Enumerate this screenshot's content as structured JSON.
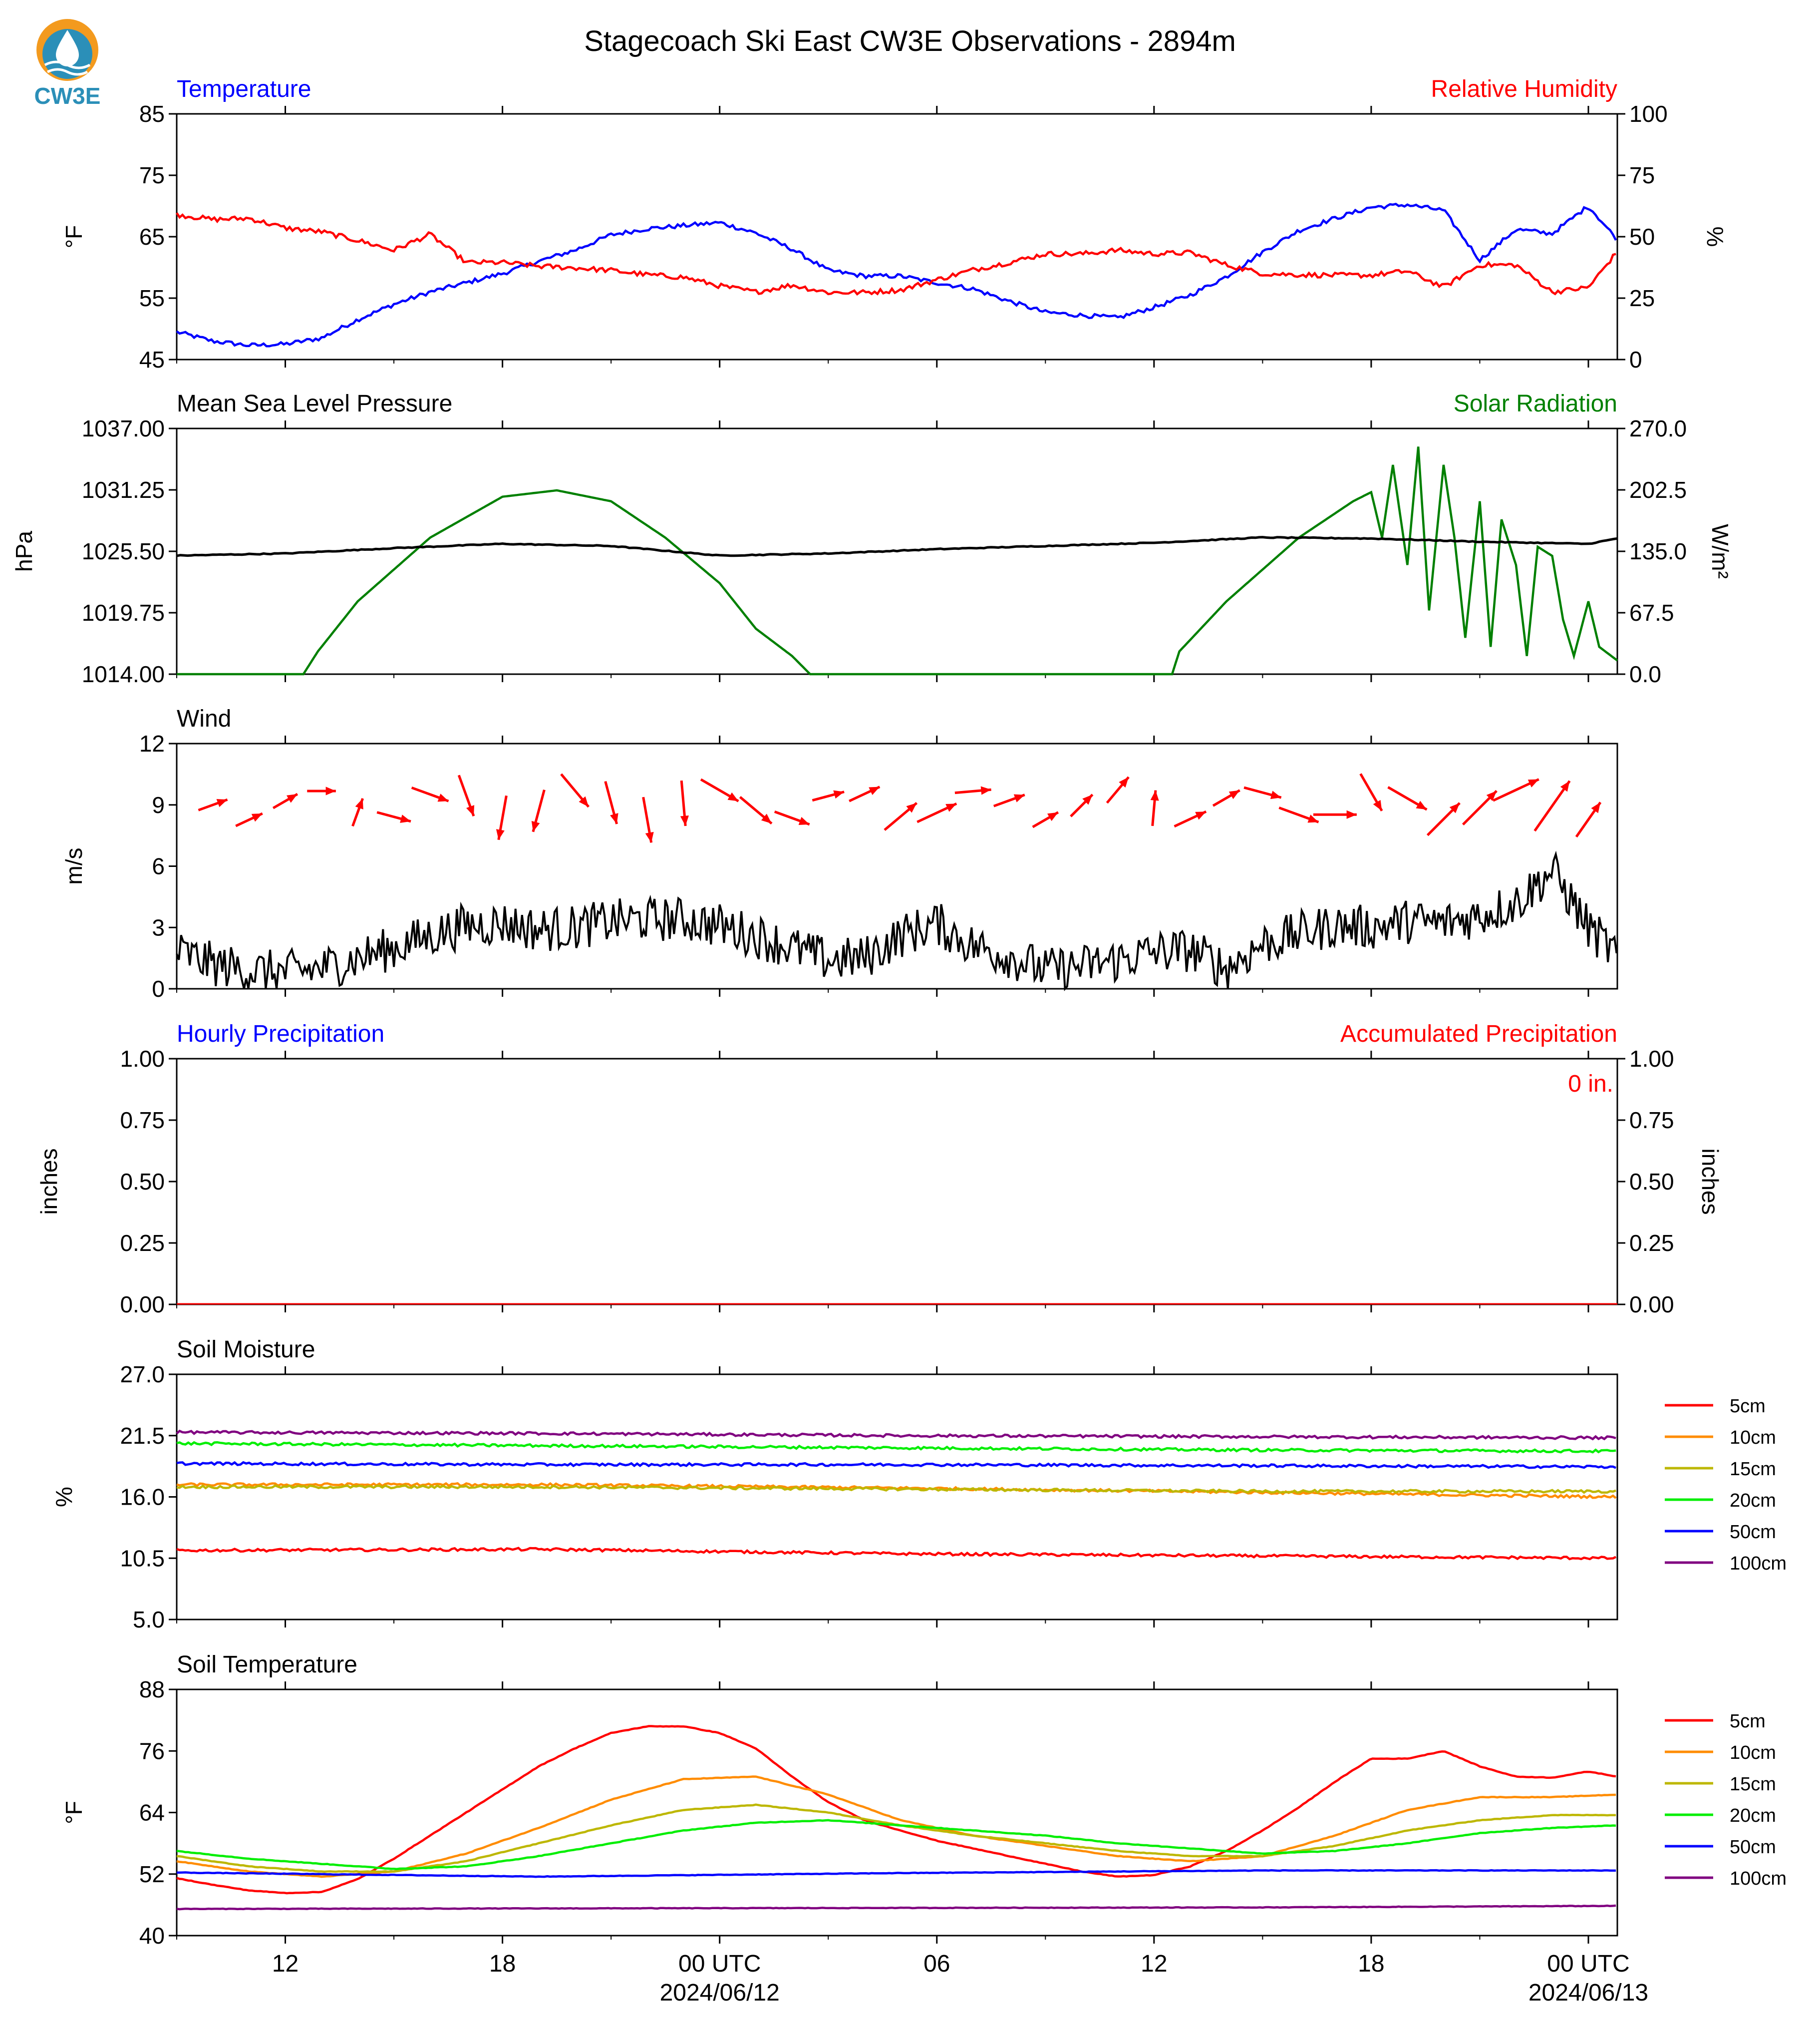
{
  "title": "Stagecoach Ski East CW3E Observations - 2894m",
  "logo": {
    "text": "CW3E",
    "color": "#2b8fb8",
    "accent": "#f39a1e"
  },
  "colors": {
    "temperature": "#0000ff",
    "humidity": "#ff0000",
    "pressure": "#000000",
    "solar": "#008000",
    "wind": "#000000",
    "wind_arrow": "#ff0000",
    "accum": "#ff0000",
    "hourly": "#0000ff",
    "soil_5cm": "#ff0000",
    "soil_10cm": "#ff8c00",
    "soil_15cm": "#bdb700",
    "soil_20cm": "#00ee00",
    "soil_50cm": "#0000ff",
    "soil_100cm": "#800080"
  },
  "x_axis": {
    "range_hours": [
      -15,
      24.8
    ],
    "ticks_hours": [
      -12,
      -6,
      0,
      6,
      12,
      18,
      24
    ],
    "tick_labels": [
      "12",
      "18",
      "00 UTC",
      "06",
      "12",
      "18",
      "00 UTC"
    ],
    "date_labels": [
      "2024/06/12",
      "",
      "",
      "2024/06/13"
    ],
    "date_label_positions": [
      0,
      24
    ],
    "note": "hours relative to 2024/06/12 00 UTC"
  },
  "chart_data": [
    {
      "type": "line",
      "panel": "temperature_humidity",
      "left_title": "Temperature",
      "right_title": "Relative Humidity",
      "ylabel_left": "°F",
      "ylabel_right": "%",
      "ylim_left": [
        45,
        85
      ],
      "ylim_right": [
        0,
        100
      ],
      "yticks_left": [
        "45",
        "55",
        "65",
        "75",
        "85"
      ],
      "yticks_right": [
        "0",
        "25",
        "50",
        "75",
        "100"
      ],
      "series": [
        {
          "name": "Temperature",
          "axis": "left",
          "x": [
            -15,
            -14,
            -13,
            -12,
            -11,
            -10,
            -9,
            -8,
            -7,
            -6,
            -5,
            -4,
            -3,
            -2,
            -1,
            0,
            1,
            2,
            3,
            4,
            5,
            6,
            7,
            8,
            9,
            10,
            11,
            12,
            13,
            14,
            15,
            16,
            17,
            18,
            19,
            20,
            21,
            22,
            23,
            24,
            24.8
          ],
          "y": [
            49.5,
            48,
            47.3,
            47.5,
            48.5,
            51.5,
            54,
            56,
            57.5,
            59,
            61,
            62.8,
            65.3,
            66.3,
            66.8,
            67.3,
            65.6,
            63,
            59.5,
            58.6,
            58.6,
            57.5,
            56.5,
            54.5,
            52.7,
            52.2,
            51.8,
            53.5,
            55.5,
            58.5,
            62.5,
            66,
            68,
            69.8,
            70.2,
            69.3,
            61.2,
            66.2,
            65.5,
            70,
            64.5
          ]
        },
        {
          "name": "Relative Humidity",
          "axis": "right",
          "x": [
            -15,
            -14,
            -13,
            -12,
            -11,
            -10,
            -9,
            -8,
            -7,
            -6,
            -5,
            -4,
            -3,
            -2,
            -1,
            0,
            1,
            2,
            3,
            4,
            5,
            6,
            7,
            8,
            9,
            10,
            11,
            12,
            13,
            14,
            15,
            16,
            17,
            18,
            19,
            20,
            21,
            22,
            23,
            24,
            24.8
          ],
          "y": [
            59,
            57,
            57.5,
            53.5,
            52,
            48.5,
            44.5,
            51,
            39.5,
            39.5,
            38,
            37.3,
            36.3,
            34.5,
            33.5,
            30,
            27.5,
            30.3,
            27.3,
            27.3,
            28.3,
            32.5,
            36.5,
            39.5,
            43,
            43,
            44.5,
            43,
            43.5,
            38.5,
            35,
            34.5,
            34.3,
            34.3,
            36,
            29.5,
            38.5,
            38.5,
            27.5,
            29.3,
            44
          ]
        }
      ]
    },
    {
      "type": "line",
      "panel": "pressure_solar",
      "left_title": "Mean Sea Level Pressure",
      "right_title": "Solar Radiation",
      "ylabel_left": "hPa",
      "ylabel_right": "W/m²",
      "ylim_left": [
        1014.0,
        1037.0
      ],
      "ylim_right": [
        0,
        270
      ],
      "yticks_left": [
        "1014.00",
        "1019.75",
        "1025.50",
        "1031.25",
        "1037.00"
      ],
      "yticks_right": [
        "0.0",
        "67.5",
        "135.0",
        "202.5",
        "270.0"
      ],
      "series": [
        {
          "name": "Mean Sea Level Pressure",
          "axis": "left",
          "x": [
            -15,
            -12,
            -9,
            -6,
            -3,
            0,
            3,
            6,
            9,
            12,
            15,
            18,
            21,
            24,
            24.8
          ],
          "y": [
            1025.1,
            1025.3,
            1025.8,
            1026.2,
            1026.0,
            1025.1,
            1025.3,
            1025.7,
            1026.0,
            1026.3,
            1026.8,
            1026.7,
            1026.4,
            1026.2,
            1026.7
          ]
        },
        {
          "name": "Solar Radiation",
          "axis": "right",
          "x": [
            -15,
            -11.5,
            -11.1,
            -10,
            -8,
            -6,
            -4.5,
            -3,
            -1.5,
            0,
            1,
            2,
            2.5,
            3,
            6,
            9,
            11,
            12.5,
            12.7,
            14,
            16,
            17.5,
            18,
            18.3,
            18.6,
            19,
            19.3,
            19.6,
            20,
            20.3,
            20.6,
            21,
            21.3,
            21.6,
            22,
            22.3,
            22.6,
            23,
            23.3,
            23.6,
            24,
            24.3,
            24.8
          ],
          "y": [
            0,
            0,
            25,
            80,
            150,
            195,
            202,
            190,
            150,
            100,
            50,
            20,
            0,
            0,
            0,
            0,
            0,
            0,
            25,
            80,
            150,
            190,
            200,
            150,
            230,
            120,
            250,
            70,
            230,
            150,
            40,
            190,
            30,
            170,
            120,
            20,
            140,
            130,
            60,
            20,
            80,
            30,
            15
          ]
        }
      ]
    },
    {
      "type": "line",
      "panel": "wind",
      "left_title": "Wind",
      "ylabel_left": "m/s",
      "ylim_left": [
        0,
        12
      ],
      "yticks_left": [
        "0",
        "3",
        "6",
        "9",
        "12"
      ],
      "series": [
        {
          "name": "Wind speed",
          "x": [
            -15,
            -14,
            -13,
            -12,
            -11,
            -10,
            -9,
            -8,
            -7,
            -6,
            -5,
            -4,
            -3,
            -2,
            -1,
            0,
            1,
            2,
            3,
            4,
            5,
            6,
            7,
            8,
            9,
            10,
            11,
            12,
            13,
            14,
            15,
            16,
            17,
            18,
            19,
            20,
            21,
            22,
            23,
            24,
            24.8
          ],
          "y": [
            1.8,
            1.2,
            0.9,
            0.8,
            1.0,
            1.5,
            2.0,
            2.6,
            3.1,
            3.2,
            2.9,
            3.0,
            3.3,
            3.4,
            3.4,
            3.1,
            2.6,
            2.0,
            1.4,
            1.5,
            2.6,
            3.2,
            2.1,
            1.6,
            0.9,
            1.1,
            1.4,
            1.8,
            1.9,
            1.0,
            2.2,
            2.7,
            3.1,
            3.0,
            3.3,
            3.2,
            3.6,
            4.2,
            5.8,
            3.0,
            1.6
          ]
        },
        {
          "name": "Wind direction arrows",
          "x": [
            -14,
            -13,
            -12,
            -11,
            -10,
            -9,
            -8,
            -7,
            -6,
            -5,
            -4,
            -3,
            -2,
            -1,
            0,
            1,
            2,
            3,
            4,
            5,
            6,
            7,
            8,
            9,
            10,
            11,
            12,
            13,
            14,
            15,
            16,
            17,
            18,
            19,
            20,
            21,
            22,
            23,
            24
          ],
          "direction_deg": [
            250,
            245,
            240,
            270,
            200,
            285,
            290,
            340,
            10,
            15,
            320,
            345,
            350,
            355,
            300,
            310,
            290,
            255,
            245,
            230,
            245,
            265,
            250,
            240,
            225,
            220,
            185,
            245,
            240,
            285,
            290,
            270,
            330,
            300,
            225,
            225,
            245,
            215,
            215
          ],
          "speed": [
            1.2,
            1.0,
            0.8,
            0.9,
            1.0,
            1.8,
            2.4,
            3.0,
            3.2,
            3.0,
            2.9,
            3.1,
            3.4,
            3.3,
            3.0,
            2.7,
            2.1,
            1.5,
            1.6,
            2.8,
            3.0,
            2.0,
            1.5,
            1.0,
            1.2,
            1.6,
            1.9,
            1.8,
            1.2,
            2.3,
            2.8,
            3.0,
            2.9,
            3.2,
            3.3,
            3.6,
            4.0,
            5.5,
            2.8
          ]
        }
      ]
    },
    {
      "type": "line",
      "panel": "precipitation",
      "left_title": "Hourly Precipitation",
      "right_title": "Accumulated Precipitation",
      "ylabel_left": "inches",
      "ylabel_right": "inches",
      "ylim_left": [
        0,
        1.0
      ],
      "ylim_right": [
        0,
        1.0
      ],
      "yticks_left": [
        "0.00",
        "0.25",
        "0.50",
        "0.75",
        "1.00"
      ],
      "yticks_right": [
        "0.00",
        "0.25",
        "0.50",
        "0.75",
        "1.00"
      ],
      "annotation": "0 in.",
      "series": [
        {
          "name": "Hourly Precipitation",
          "x": [
            -15,
            24.8
          ],
          "y": [
            0,
            0
          ]
        },
        {
          "name": "Accumulated Precipitation",
          "x": [
            -15,
            24.8
          ],
          "y": [
            0,
            0
          ]
        }
      ]
    },
    {
      "type": "line",
      "panel": "soil_moisture",
      "left_title": "Soil Moisture",
      "ylabel_left": "%",
      "ylim_left": [
        5.0,
        27.0
      ],
      "yticks_left": [
        "5.0",
        "10.5",
        "16.0",
        "21.5",
        "27.0"
      ],
      "legend": [
        "5cm",
        "10cm",
        "15cm",
        "20cm",
        "50cm",
        "100cm"
      ],
      "series": [
        {
          "name": "5cm",
          "x": [
            -15,
            -5,
            5,
            15,
            24.8
          ],
          "y": [
            11.2,
            11.3,
            10.9,
            10.7,
            10.5
          ]
        },
        {
          "name": "10cm",
          "x": [
            -15,
            -5,
            5,
            15,
            24.8
          ],
          "y": [
            17.1,
            17.1,
            16.8,
            16.4,
            16.0
          ]
        },
        {
          "name": "15cm",
          "x": [
            -15,
            -5,
            5,
            15,
            24.8
          ],
          "y": [
            16.9,
            16.9,
            16.7,
            16.5,
            16.5
          ]
        },
        {
          "name": "20cm",
          "x": [
            -15,
            -5,
            5,
            15,
            24.8
          ],
          "y": [
            20.8,
            20.6,
            20.4,
            20.2,
            20.1
          ]
        },
        {
          "name": "50cm",
          "x": [
            -15,
            -5,
            5,
            15,
            24.8
          ],
          "y": [
            19.0,
            18.9,
            18.9,
            18.8,
            18.7
          ]
        },
        {
          "name": "100cm",
          "x": [
            -15,
            -5,
            5,
            15,
            24.8
          ],
          "y": [
            21.8,
            21.7,
            21.5,
            21.4,
            21.3
          ]
        }
      ]
    },
    {
      "type": "line",
      "panel": "soil_temperature",
      "left_title": "Soil Temperature",
      "ylabel_left": "°F",
      "ylim_left": [
        40,
        88
      ],
      "yticks_left": [
        "40",
        "52",
        "64",
        "76",
        "88"
      ],
      "legend": [
        "5cm",
        "10cm",
        "15cm",
        "20cm",
        "50cm",
        "100cm"
      ],
      "series": [
        {
          "name": "5cm",
          "x": [
            -15,
            -14,
            -13,
            -12,
            -11,
            -10,
            -9,
            -8,
            -7,
            -6,
            -5,
            -4,
            -3,
            -2,
            -1,
            0,
            1,
            2,
            3,
            4,
            5,
            6,
            7,
            8,
            9,
            10,
            11,
            12,
            13,
            14,
            15,
            16,
            17,
            18,
            19,
            20,
            21,
            22,
            23,
            24,
            24.8
          ],
          "y": [
            51.2,
            49.9,
            48.8,
            48.3,
            48.5,
            51,
            55,
            59.5,
            64,
            68.5,
            73,
            76.5,
            79.5,
            80.8,
            80.8,
            79.5,
            76.5,
            71,
            66,
            62.5,
            60.5,
            58.5,
            57,
            55.5,
            54,
            52.5,
            51.5,
            51.8,
            53.5,
            56.5,
            60.5,
            65,
            70,
            74.5,
            74.5,
            76,
            73,
            71,
            70.8,
            72,
            71
          ]
        },
        {
          "name": "10cm",
          "x": [
            -15,
            -13,
            -11,
            -9,
            -7,
            -5,
            -3,
            -1,
            1,
            3,
            5,
            7,
            9,
            11,
            13,
            15,
            17,
            19,
            21,
            23,
            24.8
          ],
          "y": [
            54.5,
            52.5,
            51.5,
            52.5,
            56,
            61,
            66.5,
            70.5,
            71,
            67.5,
            62.5,
            59.5,
            57.5,
            55.5,
            54.5,
            55.5,
            59.5,
            64.5,
            67,
            67,
            67.5
          ]
        },
        {
          "name": "15cm",
          "x": [
            -15,
            -13,
            -11,
            -9,
            -7,
            -5,
            -3,
            -1,
            1,
            3,
            5,
            7,
            9,
            11,
            13,
            15,
            17,
            19,
            21,
            23,
            24.8
          ],
          "y": [
            55.5,
            53.5,
            52.5,
            52.5,
            54.5,
            58,
            61.5,
            64.5,
            65.5,
            64,
            61.5,
            59.5,
            58,
            56.5,
            55.5,
            55.5,
            57.5,
            60.5,
            62.5,
            63.5,
            63.5
          ]
        },
        {
          "name": "20cm",
          "x": [
            -15,
            -13,
            -11,
            -9,
            -7,
            -5,
            -3,
            -1,
            1,
            3,
            5,
            7,
            9,
            11,
            13,
            15,
            17,
            19,
            21,
            23,
            24.8
          ],
          "y": [
            56.5,
            55,
            54,
            53,
            53.5,
            55.5,
            58,
            60.5,
            62,
            62.5,
            61.5,
            60.5,
            59.5,
            58,
            57,
            56,
            56.5,
            58,
            60,
            61,
            61.5
          ]
        },
        {
          "name": "50cm",
          "x": [
            -15,
            -5,
            5,
            15,
            24.8
          ],
          "y": [
            52.3,
            51.5,
            52.2,
            52.7,
            52.7
          ]
        },
        {
          "name": "100cm",
          "x": [
            -15,
            -5,
            5,
            15,
            24.8
          ],
          "y": [
            45.2,
            45.3,
            45.4,
            45.5,
            45.8
          ]
        }
      ]
    }
  ]
}
